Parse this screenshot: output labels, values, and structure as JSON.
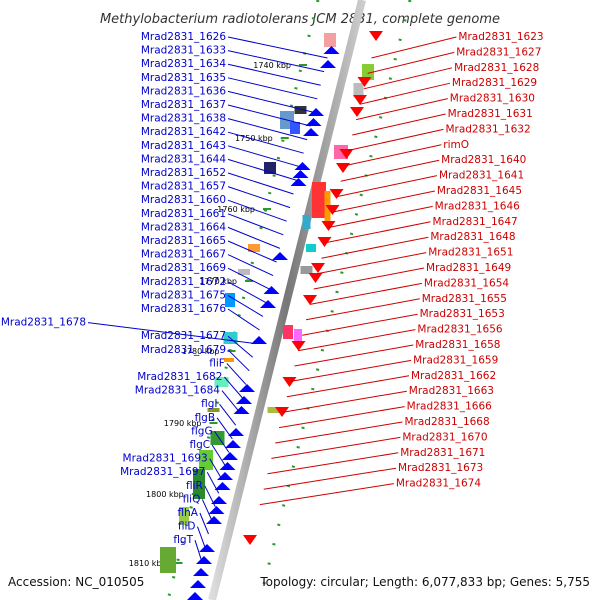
{
  "title": "Methylobacterium radiotolerans JCM 2831, complete genome",
  "footer": {
    "accession": "Accession: NC_010505",
    "summary": "Topology: circular; Length: 6,077,833 bp; Genes: 5,755"
  },
  "ticks": [
    "1740 kbp",
    "1750 kbp",
    "1760 kbp",
    "1770 kbp",
    "1780 kbp",
    "1790 kbp",
    "1800 kbp",
    "1810 kbp"
  ],
  "left_labels": [
    "Mrad2831_1626",
    "Mrad2831_1633",
    "Mrad2831_1634",
    "Mrad2831_1635",
    "Mrad2831_1636",
    "Mrad2831_1637",
    "Mrad2831_1638",
    "Mrad2831_1642",
    "Mrad2831_1643",
    "Mrad2831_1644",
    "Mrad2831_1652",
    "Mrad2831_1657",
    "Mrad2831_1660",
    "Mrad2831_1661",
    "Mrad2831_1664",
    "Mrad2831_1665",
    "Mrad2831_1667",
    "Mrad2831_1669",
    "Mrad2831_1672",
    "Mrad2831_1675",
    "Mrad2831_1676",
    "Mrad2831_1678",
    "Mrad2831_1677",
    "Mrad2831_1679",
    "fliF",
    "Mrad2831_1682",
    "Mrad2831_1684",
    "flgI",
    "flgB",
    "flgG",
    "flgC",
    "Mrad2831_1693",
    "Mrad2831_1697",
    "fliR",
    "fliQ",
    "flhA",
    "fliD",
    "flgT"
  ],
  "right_labels": [
    "Mrad2831_1623",
    "Mrad2831_1627",
    "Mrad2831_1628",
    "Mrad2831_1629",
    "Mrad2831_1630",
    "Mrad2831_1631",
    "Mrad2831_1632",
    "rimO",
    "Mrad2831_1640",
    "Mrad2831_1641",
    "Mrad2831_1645",
    "Mrad2831_1646",
    "Mrad2831_1647",
    "Mrad2831_1648",
    "Mrad2831_1651",
    "Mrad2831_1649",
    "Mrad2831_1654",
    "Mrad2831_1655",
    "Mrad2831_1653",
    "Mrad2831_1656",
    "Mrad2831_1658",
    "Mrad2831_1659",
    "Mrad2831_1662",
    "Mrad2831_1663",
    "Mrad2831_1666",
    "Mrad2831_1668",
    "Mrad2831_1670",
    "Mrad2831_1671",
    "Mrad2831_1673",
    "Mrad2831_1674"
  ],
  "colors": {
    "forward_gene": "#0000ff",
    "reverse_gene": "#ff0000",
    "left_label": "#0000cc",
    "right_label": "#cc0000",
    "backbone": "#888888",
    "gc_skew": "#2a9a2a"
  }
}
